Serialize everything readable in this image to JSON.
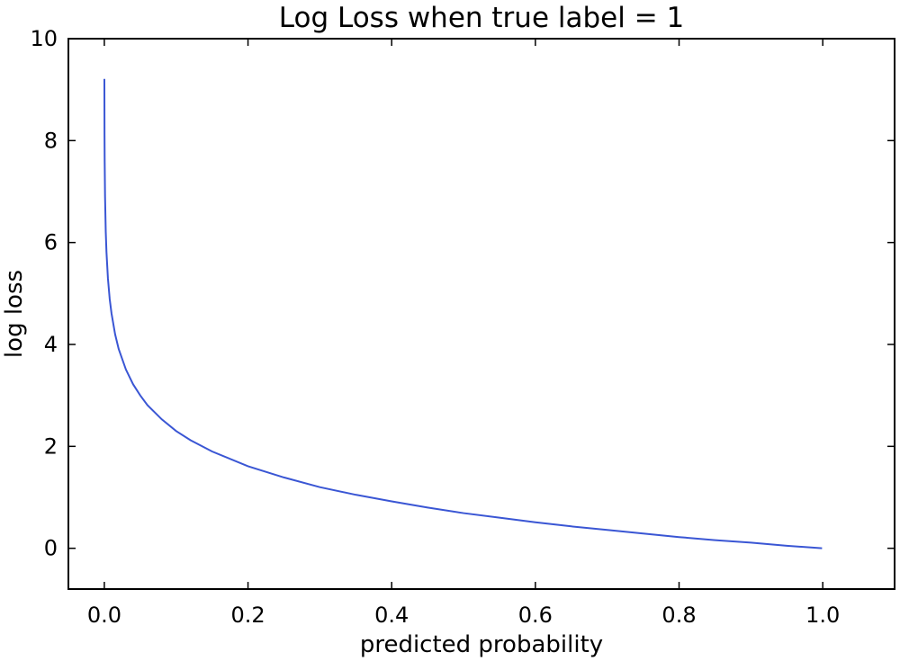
{
  "chart_data": {
    "type": "line",
    "title": "Log Loss when true label = 1",
    "xlabel": "predicted probability",
    "ylabel": "log loss",
    "xlim": [
      -0.05,
      1.1
    ],
    "ylim": [
      -0.8,
      10
    ],
    "xticks": [
      0.0,
      0.2,
      0.4,
      0.6,
      0.8,
      1.0
    ],
    "xtick_labels": [
      "0.0",
      "0.2",
      "0.4",
      "0.6",
      "0.8",
      "1.0"
    ],
    "yticks": [
      0,
      2,
      4,
      6,
      8,
      10
    ],
    "ytick_labels": [
      "0",
      "2",
      "4",
      "6",
      "8",
      "10"
    ],
    "grid": false,
    "series": [
      {
        "color": "#3a56d4",
        "x": [
          0.0001,
          0.0003,
          0.0005,
          0.001,
          0.002,
          0.003,
          0.005,
          0.0075,
          0.01,
          0.015,
          0.02,
          0.03,
          0.04,
          0.05,
          0.06,
          0.08,
          0.1,
          0.12,
          0.15,
          0.2,
          0.25,
          0.3,
          0.35,
          0.4,
          0.45,
          0.5,
          0.55,
          0.6,
          0.65,
          0.7,
          0.75,
          0.8,
          0.85,
          0.9,
          0.95,
          0.999
        ],
        "y": [
          9.21,
          8.11,
          7.6,
          6.91,
          6.21,
          5.81,
          5.3,
          4.89,
          4.61,
          4.2,
          3.91,
          3.51,
          3.22,
          3.0,
          2.81,
          2.53,
          2.3,
          2.12,
          1.9,
          1.61,
          1.39,
          1.2,
          1.05,
          0.92,
          0.8,
          0.69,
          0.6,
          0.51,
          0.43,
          0.36,
          0.29,
          0.22,
          0.16,
          0.11,
          0.05,
          0.001
        ]
      }
    ]
  }
}
